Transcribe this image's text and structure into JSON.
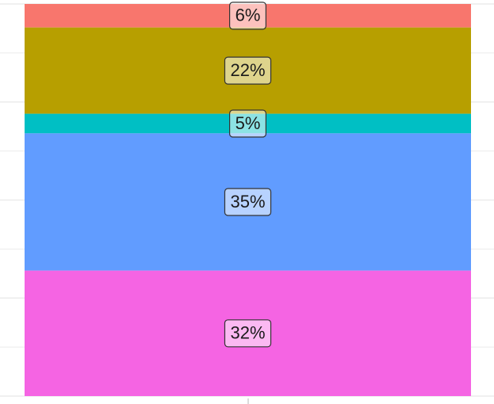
{
  "chart_data": {
    "type": "stacked-bar",
    "ylim": [
      0,
      100
    ],
    "series": [
      {
        "color": "#F8766D",
        "values": [
          6
        ],
        "value_labels": [
          "6%"
        ]
      },
      {
        "color": "#B79F00",
        "values": [
          22
        ],
        "value_labels": [
          "22%"
        ]
      },
      {
        "color": "#00BFC4",
        "values": [
          5
        ],
        "value_labels": [
          "5%"
        ]
      },
      {
        "color": "#619CFF",
        "values": [
          35
        ],
        "value_labels": [
          "35%"
        ]
      },
      {
        "color": "#F564E3",
        "values": [
          32
        ],
        "value_labels": [
          "32%"
        ]
      }
    ]
  }
}
